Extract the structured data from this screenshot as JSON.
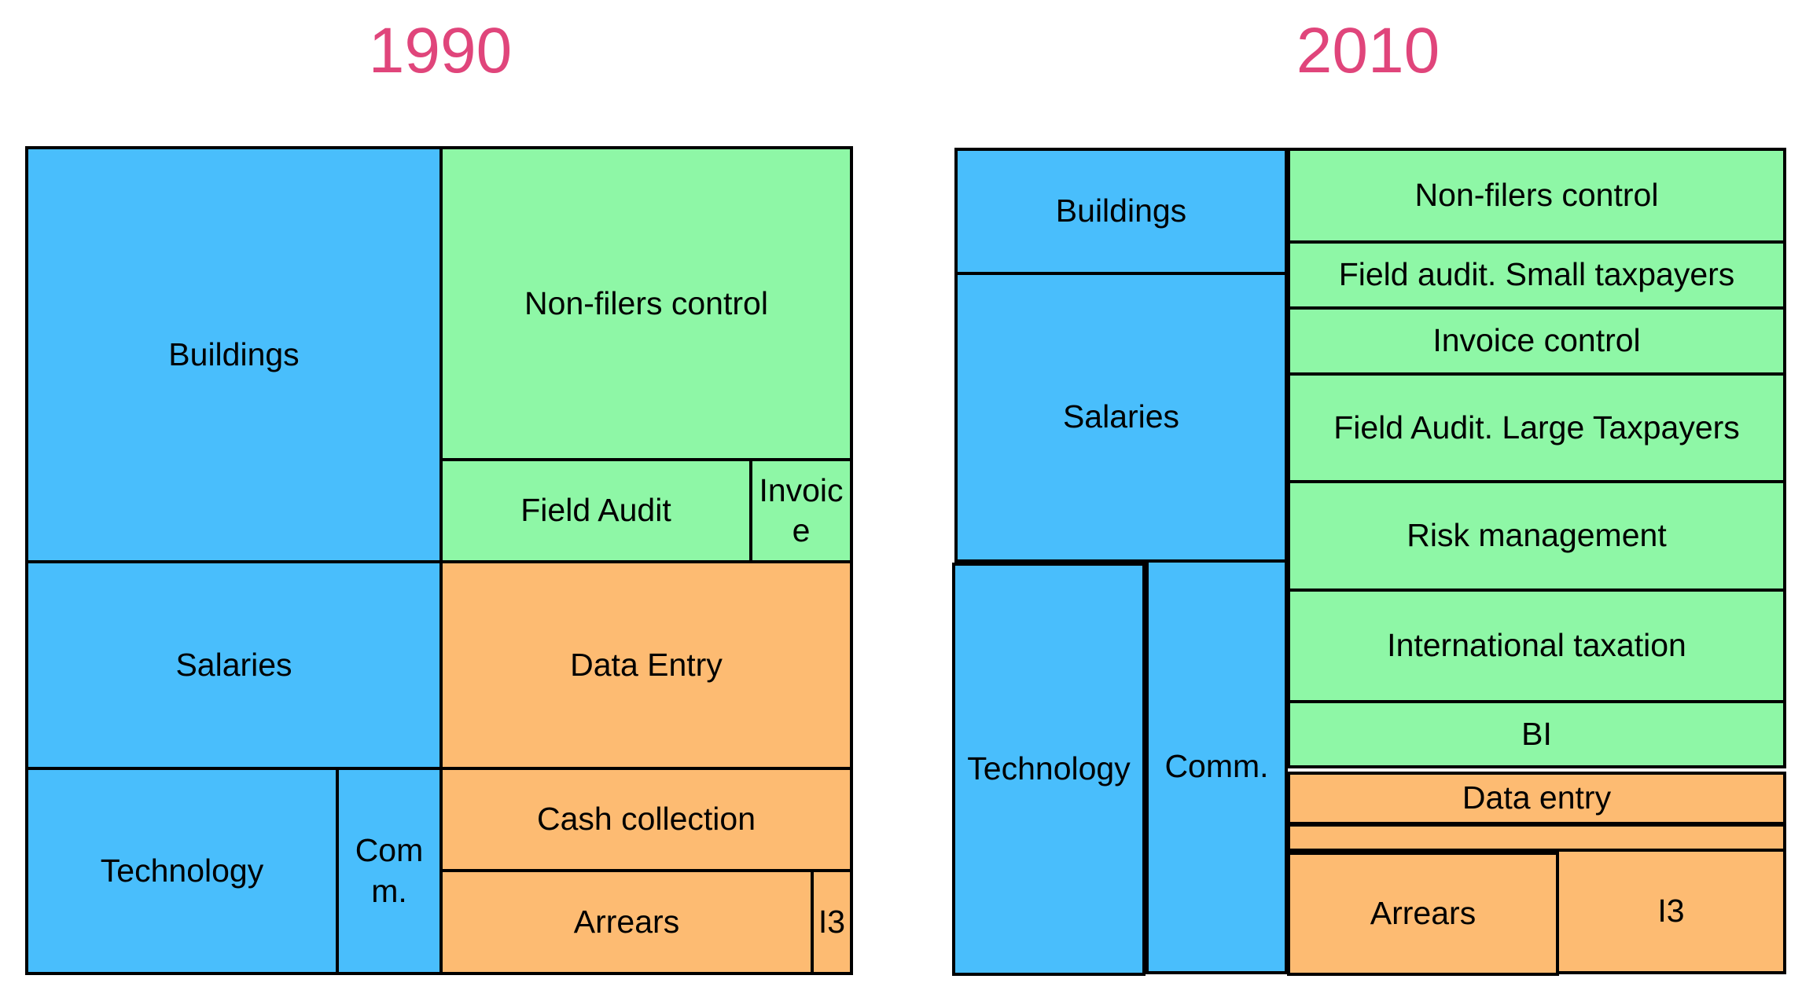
{
  "colors": {
    "title": "#E0457B",
    "blue": "#49BEFC",
    "green": "#8EF7A6",
    "orange": "#FDBB72",
    "border": "#000000"
  },
  "panels": {
    "left": {
      "title": "1990",
      "cells": {
        "buildings": "Buildings",
        "salaries": "Salaries",
        "technology": "Technology",
        "comm": "Com m.",
        "non_filers": "Non-filers control",
        "field_audit": "Field Audit",
        "invoice": "Invoic e",
        "data_entry": "Data Entry",
        "cash_collection": "Cash collection",
        "arrears": "Arrears",
        "i3": "I3"
      }
    },
    "right": {
      "title": "2010",
      "cells": {
        "buildings": "Buildings",
        "salaries": "Salaries",
        "technology": "Technology",
        "comm": "Comm.",
        "non_filers": "Non-filers control",
        "field_audit_small": "Field audit. Small taxpayers",
        "invoice_control": "Invoice control",
        "field_audit_large": "Field Audit. Large Taxpayers",
        "risk_management": "Risk management",
        "international_taxation": "International taxation",
        "bi": "BI",
        "data_entry": "Data entry",
        "unlabeled": "",
        "arrears": "Arrears",
        "i3": "I3"
      }
    }
  }
}
